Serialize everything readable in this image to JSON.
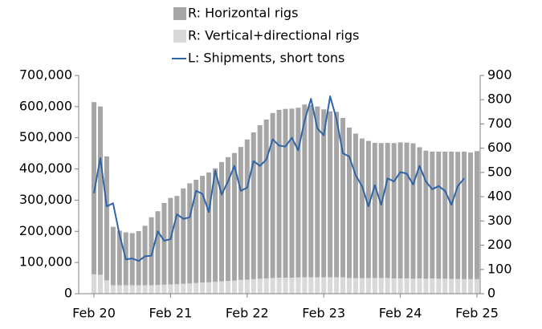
{
  "chart_data": {
    "type": "bar_line",
    "categories": [
      "Feb 20",
      null,
      null,
      null,
      null,
      null,
      null,
      null,
      null,
      null,
      null,
      null,
      "Feb 21",
      null,
      null,
      null,
      null,
      null,
      null,
      null,
      null,
      null,
      null,
      null,
      "Feb 22",
      null,
      null,
      null,
      null,
      null,
      null,
      null,
      null,
      null,
      null,
      null,
      "Feb 23",
      null,
      null,
      null,
      null,
      null,
      null,
      null,
      null,
      null,
      null,
      null,
      "Feb 24",
      null,
      null,
      null,
      null,
      null,
      null,
      null,
      null,
      null,
      null,
      null,
      "Feb 25"
    ],
    "series": [
      {
        "name": "R: Horizontal rigs",
        "color": "#a6a6a6",
        "axis": "y2",
        "stacked": true,
        "values": [
          710,
          694,
          511,
          241,
          225,
          218,
          215,
          223,
          245,
          280,
          304,
          337,
          357,
          364,
          393,
          412,
          426,
          440,
          453,
          468,
          492,
          510,
          526,
          548,
          578,
          605,
          633,
          655,
          680,
          692,
          696,
          697,
          700,
          712,
          710,
          704,
          692,
          684,
          682,
          657,
          620,
          596,
          576,
          565,
          557,
          556,
          557,
          558,
          561,
          560,
          558,
          541,
          528,
          523,
          524,
          524,
          525,
          524,
          526,
          522,
          528
        ]
      },
      {
        "name": "R: Vertical+directional rigs",
        "color": "#d9d9d9",
        "axis": "y2",
        "stacked": true,
        "values": [
          80,
          78,
          55,
          35,
          35,
          35,
          35,
          35,
          35,
          35,
          36,
          37,
          38,
          39,
          41,
          43,
          44,
          46,
          47,
          49,
          51,
          53,
          54,
          57,
          58,
          60,
          62,
          63,
          65,
          66,
          66,
          66,
          67,
          68,
          68,
          68,
          68,
          68,
          68,
          68,
          65,
          64,
          64,
          65,
          65,
          65,
          65,
          63,
          63,
          63,
          62,
          63,
          62,
          63,
          62,
          62,
          61,
          61,
          60,
          60,
          60
        ]
      },
      {
        "name": "L: Shipments, short tons",
        "color": "#2e64a8",
        "axis": "y",
        "kind": "line",
        "values": [
          322000,
          435000,
          280000,
          290000,
          190000,
          110000,
          113000,
          105000,
          120000,
          122000,
          200000,
          170000,
          175000,
          255000,
          240000,
          245000,
          330000,
          320000,
          262000,
          395000,
          318000,
          360000,
          410000,
          330000,
          340000,
          425000,
          410000,
          430000,
          495000,
          475000,
          472000,
          500000,
          460000,
          555000,
          625000,
          530000,
          508000,
          633000,
          560000,
          450000,
          440000,
          380000,
          345000,
          280000,
          348000,
          285000,
          370000,
          360000,
          390000,
          385000,
          350000,
          410000,
          360000,
          335000,
          345000,
          330000,
          285000,
          345000,
          370000,
          null,
          null
        ]
      }
    ],
    "ylim": [
      0,
      700000
    ],
    "yticks": [
      {
        "value": 0,
        "label": "0"
      },
      {
        "value": 100000,
        "label": "100,000"
      },
      {
        "value": 200000,
        "label": "200,000"
      },
      {
        "value": 300000,
        "label": "300,000"
      },
      {
        "value": 400000,
        "label": "400,000"
      },
      {
        "value": 500000,
        "label": "500,000"
      },
      {
        "value": 600000,
        "label": "600,000"
      },
      {
        "value": 700000,
        "label": "700,000"
      }
    ],
    "y2lim": [
      0,
      900
    ],
    "y2ticks": [
      0,
      100,
      200,
      300,
      400,
      500,
      600,
      700,
      800,
      900
    ],
    "grid": false,
    "legend": "top"
  }
}
